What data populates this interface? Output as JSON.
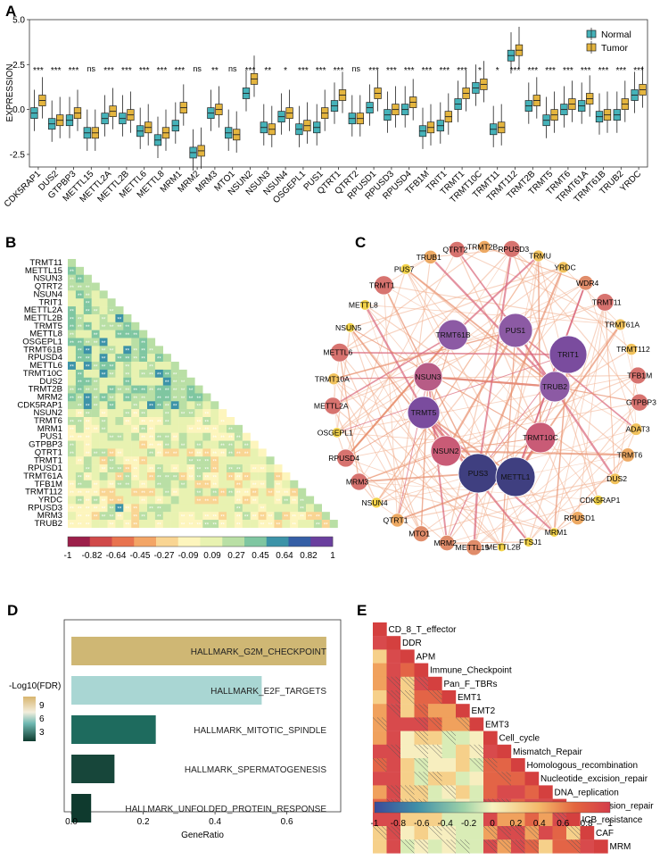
{
  "panel_labels": [
    "A",
    "B",
    "C",
    "D",
    "E"
  ],
  "chart_data": [
    {
      "panel": "A",
      "type": "box",
      "ylabel": "EXPRESSION",
      "ylim": [
        -3.2,
        5.0
      ],
      "yticks": [
        "-2.5",
        "0.0",
        "2.5",
        "5.0"
      ],
      "ytick_values": [
        -2.5,
        0.0,
        2.5,
        5.0
      ],
      "legend_position": "top-right",
      "series": [
        {
          "name": "Normal",
          "color": "#45b2b9"
        },
        {
          "name": "Tumor",
          "color": "#e4b53f"
        }
      ],
      "categories": [
        "CDK5RAP1",
        "DUS2",
        "GTPBP3",
        "METTL15",
        "METTL2A",
        "METTL2B",
        "METTL6",
        "METTL8",
        "MRM1",
        "MRM2",
        "MRM3",
        "MTO1",
        "NSUN2",
        "NSUN3",
        "NSUN4",
        "OSGEPL1",
        "PUS1",
        "QTRT1",
        "QTRT2",
        "RPUSD1",
        "RPUSD3",
        "RPUSD4",
        "TFB1M",
        "TRIT1",
        "TRMT1",
        "TRMT10C",
        "TRMT11",
        "TRMT112",
        "TRMT2B",
        "TRMT5",
        "TRMT6",
        "TRMT61A",
        "TRMT61B",
        "TRUB2",
        "YRDC"
      ],
      "significance": [
        "***",
        "***",
        "***",
        "ns",
        "***",
        "***",
        "***",
        "***",
        "***",
        "ns",
        "**",
        "ns",
        "***",
        "**",
        "*",
        "***",
        "***",
        "***",
        "ns",
        "***",
        "***",
        "***",
        "***",
        "***",
        "***",
        "*",
        "*",
        "***",
        "***",
        "***",
        "***",
        "***",
        "***",
        "***",
        "***"
      ],
      "normal_median": [
        -0.2,
        -0.8,
        -0.6,
        -1.3,
        -0.5,
        -0.5,
        -1.2,
        -1.7,
        -0.9,
        -2.4,
        -0.2,
        -1.3,
        0.9,
        -1.0,
        -0.4,
        -1.1,
        -1.0,
        0.2,
        -0.5,
        0.1,
        -0.3,
        0.0,
        -1.2,
        -0.9,
        0.3,
        1.2,
        -1.1,
        3.0,
        0.2,
        -0.6,
        0.0,
        0.2,
        -0.4,
        -0.3,
        0.8
      ],
      "tumor_median": [
        0.5,
        -0.6,
        -0.2,
        -1.3,
        -0.1,
        -0.3,
        -1.0,
        -1.3,
        0.1,
        -2.3,
        -0.0,
        -1.4,
        1.7,
        -1.1,
        -0.2,
        -0.9,
        -0.2,
        0.8,
        -0.5,
        0.9,
        0.0,
        0.4,
        -1.0,
        -0.4,
        0.9,
        1.4,
        -1.0,
        3.3,
        0.5,
        -0.3,
        0.3,
        0.6,
        -0.3,
        0.3,
        1.1
      ]
    },
    {
      "panel": "B",
      "type": "heatmap",
      "row_labels": [
        "TRMT11",
        "METTL15",
        "NSUN3",
        "QTRT2",
        "NSUN4",
        "TRIT1",
        "METTL2A",
        "METTL2B",
        "TRMT5",
        "METTL8",
        "OSGEPL1",
        "TRMT61B",
        "RPUSD4",
        "METTL6",
        "TRMT10C",
        "DUS2",
        "TRMT2B",
        "MRM2",
        "CDK5RAP1",
        "NSUN2",
        "TRMT6",
        "MRM1",
        "PUS1",
        "GTPBP3",
        "QTRT1",
        "TRMT1",
        "RPUSD1",
        "TRMT61A",
        "TFB1M",
        "TRMT112",
        "YRDC",
        "RPUSD3",
        "MRM3",
        "TRUB2"
      ],
      "colorbar_ticks": [
        "-1",
        "-0.82",
        "-0.64",
        "-0.45",
        "-0.27",
        "-0.09",
        "0.09",
        "0.27",
        "0.45",
        "0.64",
        "0.82",
        "1"
      ],
      "colorbar_colors": [
        "#9c1f4a",
        "#d04a4a",
        "#e8734f",
        "#f3a566",
        "#f9d593",
        "#fdf5bd",
        "#e8f2b1",
        "#b9dfa5",
        "#7fc6a1",
        "#3c93a8",
        "#355fa6",
        "#6a3f9e"
      ]
    },
    {
      "panel": "C",
      "type": "network",
      "outer_nodes": [
        "PUS7",
        "TRUB1",
        "QTRT2",
        "TRMT2B",
        "RPUSD3",
        "TRMU",
        "YRDC",
        "WDR4",
        "TRMT11",
        "TRMT61A",
        "TRMT112",
        "TFB1M",
        "GTPBP3",
        "ADAT3",
        "TRMT6",
        "DUS2",
        "CDK5RAP1",
        "RPUSD1",
        "MRM1",
        "FTSJ1",
        "METTL2B",
        "METTL15",
        "MRM2",
        "MTO1",
        "QTRT1",
        "NSUN4",
        "MRM3",
        "RPUSD4",
        "OSGEPL1",
        "METTL2A",
        "TRMT10A",
        "METTL6",
        "NSUN5",
        "METTL8",
        "TRMT1"
      ],
      "inner_nodes": [
        "TRMT61B",
        "PUS1",
        "TRIT1",
        "NSUN3",
        "TRUB2",
        "TRMT5",
        "NSUN2",
        "TRMT10C",
        "PUS3",
        "METTL1"
      ]
    },
    {
      "panel": "D",
      "type": "bar",
      "orientation": "horizontal",
      "categories": [
        "HALLMARK_G2M_CHECKPOINT",
        "HALLMARK_E2F_TARGETS",
        "HALLMARK_MITOTIC_SPINDLE",
        "HALLMARK_SPERMATOGENESIS",
        "HALLMARK_UNFOLDED_PROTEIN_RESPONSE"
      ],
      "values": [
        0.71,
        0.53,
        0.235,
        0.12,
        0.055
      ],
      "neglog10_fdr": [
        11,
        8.2,
        2.6,
        1.5,
        1.2
      ],
      "bar_colors": [
        "#cfb774",
        "#a9d6d3",
        "#1e6b5e",
        "#17463a",
        "#0f3a2e"
      ],
      "xlabel": "GeneRatio",
      "xticks": [
        "0.0",
        "0.2",
        "0.4",
        "0.6"
      ],
      "xtick_values": [
        0.0,
        0.2,
        0.4,
        0.6
      ],
      "xlim": [
        -0.02,
        0.75
      ],
      "legend_title": "-Log10(FDR)",
      "legend_ticks": [
        "9",
        "6",
        "3"
      ]
    },
    {
      "panel": "E",
      "type": "heatmap",
      "row_labels": [
        "CD_8_T_effector",
        "DDR",
        "APM",
        "Immune_Checkpoint",
        "Pan_F_TBRs",
        "EMT1",
        "EMT2",
        "EMT3",
        "Cell_cycle",
        "Mismatch_Repair",
        "Homologous_recombination",
        "Nucleotide_excision_repair",
        "DNA_replication",
        "Base_excision_repair",
        "ICB_resistance",
        "CAF",
        "MRM"
      ],
      "colorbar_ticks": [
        "-1",
        "-0.8",
        "-0.6",
        "-0.4",
        "-0.2",
        "0",
        "0.2",
        "0.4",
        "0.6",
        "0.8",
        "1"
      ]
    }
  ]
}
